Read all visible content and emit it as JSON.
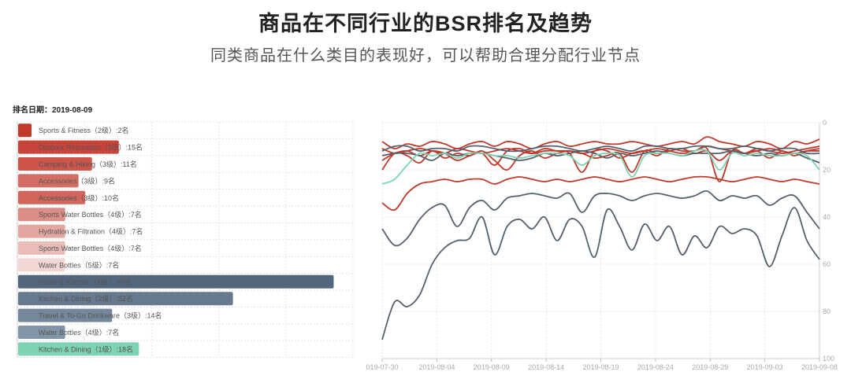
{
  "header": {
    "title": "商品在不同行业的BSR排名及趋势",
    "subtitle": "同类商品在什么类目的表现好，可以帮助合理分配行业节点"
  },
  "rank_date": {
    "label": "排名日期：",
    "value": "2019-08-09"
  },
  "chart_data": [
    {
      "type": "bar",
      "orientation": "horizontal",
      "xlim": [
        0,
        50
      ],
      "grid": true,
      "categories": [
        "Sports & Fitness（2级）:2名",
        "Outdoor Recreation（3级）:15名",
        "Camping & Hiking（3级）:11名",
        "Accessories（3级）:9名",
        "Accessories（3级）:10名",
        "Sports Water Bottles（4级）:7名",
        "Hydration & Filtration（4级）:7名",
        "Sports Water Bottles（4级）:7名",
        "Water Bottles（5级）:7名",
        "Home & Kitchen（1级）:47名",
        "Kitchen & Dining（2级）:32名",
        "Travel & To-Go Drinkware（3级）:14名",
        "Water Bottles（4级）:7名",
        "Kitchen & Dining（1级）:18名"
      ],
      "values": [
        2,
        15,
        11,
        9,
        10,
        7,
        7,
        7,
        7,
        47,
        32,
        14,
        7,
        18
      ],
      "colors": [
        "#c0392b",
        "#c8443a",
        "#cd554b",
        "#d46d64",
        "#d0665c",
        "#dc8c86",
        "#e3a6a1",
        "#e9bcb8",
        "#f2d6d4",
        "#52677e",
        "#67798f",
        "#75879b",
        "#8295a8",
        "#7dd3b2"
      ]
    },
    {
      "type": "line",
      "x_ticks": [
        "019-07-30",
        "2019-08-04",
        "2019-08-09",
        "2019-08-14",
        "2019-08-19",
        "2019-08-24",
        "2019-08-29",
        "2019-09-03",
        "2019-09-08"
      ],
      "y_ticks": [
        "0",
        "20",
        "40",
        "60",
        "80",
        "100"
      ],
      "ylim": [
        0,
        100
      ],
      "y_inverted": true,
      "grid": true,
      "series": [
        {
          "color": "#c0392b",
          "values": [
            8,
            11,
            9,
            10,
            8,
            9,
            11,
            9,
            8,
            10,
            8,
            9,
            11,
            9,
            8,
            10,
            9,
            8,
            9,
            9,
            8,
            9,
            10,
            9,
            8,
            9,
            6,
            8,
            9,
            10,
            8,
            9,
            11,
            8,
            9,
            7
          ]
        },
        {
          "color": "#c0392b",
          "values": [
            11,
            13,
            12,
            11,
            12,
            13,
            11,
            12,
            13,
            12,
            11,
            12,
            13,
            11,
            12,
            12,
            13,
            12,
            11,
            12,
            13,
            12,
            11,
            12,
            13,
            12,
            10,
            11,
            12,
            13,
            11,
            12,
            13,
            12,
            11,
            10
          ]
        },
        {
          "color": "#c0392b",
          "values": [
            16,
            13,
            12,
            14,
            12,
            13,
            16,
            14,
            13,
            18,
            12,
            11,
            13,
            12,
            12,
            13,
            21,
            12,
            12,
            15,
            13,
            12,
            14,
            11,
            12,
            12,
            11,
            25,
            12,
            13,
            12,
            11,
            12,
            13,
            12,
            12
          ]
        },
        {
          "color": "#c0392b",
          "values": [
            20,
            13,
            14,
            17,
            12,
            15,
            13,
            14,
            12,
            16,
            20,
            14,
            12,
            15,
            13,
            12,
            13,
            15,
            14,
            13,
            21,
            12,
            13,
            12,
            11,
            13,
            12,
            16,
            12,
            13,
            12,
            15,
            12,
            14,
            12,
            11
          ]
        },
        {
          "color": "#55606f",
          "values": [
            12,
            10,
            10,
            12,
            11,
            11,
            12,
            10,
            10,
            11,
            12,
            12,
            11,
            10,
            10,
            11,
            12,
            11,
            10,
            11,
            12,
            10,
            10,
            11,
            11,
            10,
            10,
            11,
            11,
            10,
            11,
            12,
            11,
            11,
            13,
            13
          ]
        },
        {
          "color": "#55606f",
          "values": [
            14,
            13,
            13,
            14,
            16,
            13,
            14,
            13,
            13,
            14,
            15,
            16,
            15,
            13,
            14,
            13,
            12,
            13,
            15,
            13,
            14,
            13,
            12,
            13,
            14,
            13,
            13,
            13,
            12,
            13,
            14,
            13,
            14,
            13,
            15,
            17
          ]
        },
        {
          "color": "#7dd3b2",
          "values": [
            26,
            24,
            18,
            13,
            14,
            13,
            15,
            13,
            13,
            14,
            14,
            15,
            14,
            13,
            13,
            14,
            18,
            14,
            13,
            14,
            23,
            14,
            13,
            13,
            14,
            12,
            12,
            20,
            13,
            14,
            13,
            14,
            14,
            13,
            14,
            20
          ]
        },
        {
          "color": "#c0392b",
          "values": [
            34,
            37,
            30,
            26,
            25,
            24,
            25,
            24,
            24,
            26,
            24,
            23,
            24,
            25,
            24,
            25,
            24,
            23,
            24,
            25,
            24,
            23,
            24,
            25,
            24,
            23,
            23,
            24,
            25,
            24,
            23,
            24,
            25,
            24,
            25,
            26
          ]
        },
        {
          "color": "#55606f",
          "values": [
            45,
            52,
            49,
            41,
            36,
            35,
            44,
            36,
            33,
            37,
            32,
            31,
            30,
            31,
            32,
            30,
            38,
            31,
            30,
            31,
            33,
            31,
            30,
            31,
            32,
            31,
            29,
            33,
            31,
            32,
            31,
            35,
            32,
            31,
            38,
            45
          ]
        },
        {
          "color": "#55606f",
          "values": [
            92,
            76,
            78,
            73,
            60,
            53,
            50,
            49,
            40,
            56,
            44,
            41,
            45,
            40,
            50,
            41,
            44,
            57,
            37,
            44,
            54,
            43,
            50,
            44,
            56,
            48,
            53,
            44,
            47,
            45,
            48,
            61,
            48,
            36,
            50,
            58
          ]
        }
      ]
    }
  ]
}
